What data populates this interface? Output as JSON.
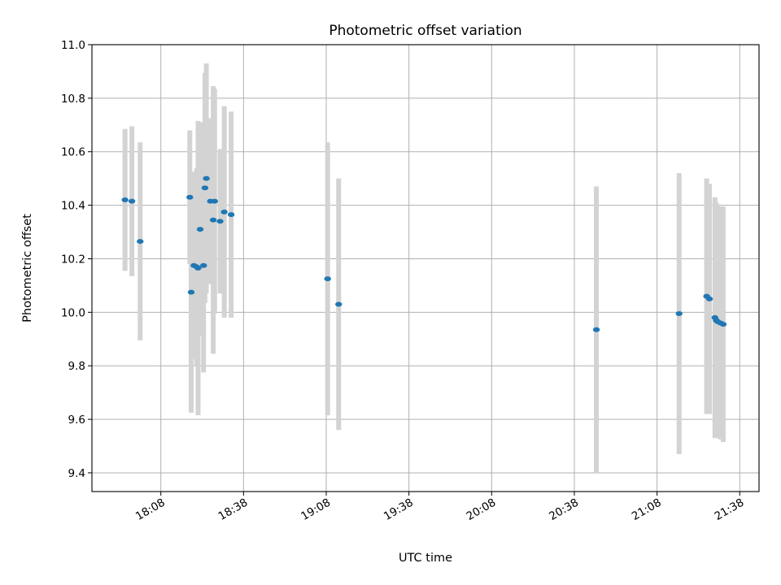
{
  "chart_data": {
    "type": "scatter",
    "title": "Photometric offset variation",
    "xlabel": "UTC time",
    "ylabel": "Photometric offset",
    "xlim": [
      "17:43",
      "21:45"
    ],
    "ylim": [
      9.33,
      11.0
    ],
    "grid": true,
    "x_ticks": [
      "18:08",
      "18:38",
      "19:08",
      "19:38",
      "20:08",
      "20:38",
      "21:08",
      "21:38"
    ],
    "y_ticks": [
      "9.4",
      "9.6",
      "9.8",
      "10.0",
      "10.2",
      "10.4",
      "10.6",
      "10.8",
      "11.0"
    ],
    "errorbar_color": "#d3d3d3",
    "marker_color": "#1f77b4",
    "series": [
      {
        "points": [
          {
            "t": "17:55:00",
            "y": 10.42,
            "err": 0.265
          },
          {
            "t": "17:57:30",
            "y": 10.415,
            "err": 0.28
          },
          {
            "t": "18:00:30",
            "y": 10.265,
            "err": 0.37
          },
          {
            "t": "18:18:30",
            "y": 10.43,
            "err": 0.25
          },
          {
            "t": "18:19:00",
            "y": 10.075,
            "err": 0.45
          },
          {
            "t": "18:20:00",
            "y": 10.175,
            "err": 0.35
          },
          {
            "t": "18:21:00",
            "y": 10.17,
            "err": 0.37
          },
          {
            "t": "18:21:30",
            "y": 10.165,
            "err": 0.55
          },
          {
            "t": "18:22:15",
            "y": 10.31,
            "err": 0.4
          },
          {
            "t": "18:23:30",
            "y": 10.175,
            "err": 0.4
          },
          {
            "t": "18:24:00",
            "y": 10.465,
            "err": 0.43
          },
          {
            "t": "18:24:30",
            "y": 10.5,
            "err": 0.43
          },
          {
            "t": "18:26:00",
            "y": 10.415,
            "err": 0.31
          },
          {
            "t": "18:27:00",
            "y": 10.345,
            "err": 0.5
          },
          {
            "t": "18:27:30",
            "y": 10.415,
            "err": 0.42
          },
          {
            "t": "18:29:30",
            "y": 10.34,
            "err": 0.27
          },
          {
            "t": "18:31:00",
            "y": 10.375,
            "err": 0.395
          },
          {
            "t": "18:33:30",
            "y": 10.365,
            "err": 0.385
          },
          {
            "t": "19:08:30",
            "y": 10.125,
            "err": 0.51
          },
          {
            "t": "19:12:30",
            "y": 10.03,
            "err": 0.47
          },
          {
            "t": "20:46:00",
            "y": 9.935,
            "err": 0.535
          },
          {
            "t": "21:16:00",
            "y": 9.995,
            "err": 0.525
          },
          {
            "t": "21:26:00",
            "y": 10.06,
            "err": 0.44
          },
          {
            "t": "21:27:00",
            "y": 10.05,
            "err": 0.43
          },
          {
            "t": "21:29:00",
            "y": 9.98,
            "err": 0.45
          },
          {
            "t": "21:29:30",
            "y": 9.97,
            "err": 0.44
          },
          {
            "t": "21:30:00",
            "y": 9.965,
            "err": 0.435
          },
          {
            "t": "21:31:00",
            "y": 9.96,
            "err": 0.435
          },
          {
            "t": "21:32:00",
            "y": 9.955,
            "err": 0.44
          }
        ]
      }
    ]
  }
}
